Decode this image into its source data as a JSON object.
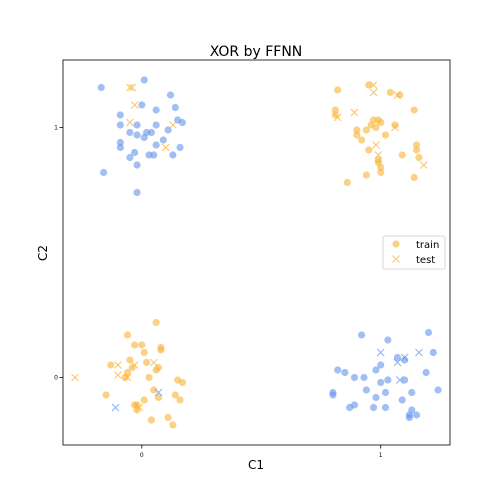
{
  "chart_data": {
    "type": "scatter",
    "title": "XOR by FFNN",
    "xlabel": "C1",
    "ylabel": "C2",
    "xlim": [
      -0.33,
      1.29
    ],
    "ylim": [
      -0.27,
      1.27
    ],
    "xticks": [
      0,
      1
    ],
    "yticks": [
      0,
      1
    ],
    "grid": false,
    "legend_position": "center-right",
    "legend": [
      {
        "label": "train",
        "marker": "circle"
      },
      {
        "label": "test",
        "marker": "x"
      }
    ],
    "class_colors": {
      "class_1": "#f9b233",
      "class_0": "#6495ed"
    },
    "train": [
      {
        "cluster": "top-left",
        "class": "class_0",
        "points": [
          [
            -0.17,
            1.16
          ],
          [
            0.01,
            1.19
          ],
          [
            -0.09,
            1.05
          ],
          [
            -0.09,
            1.01
          ],
          [
            -0.02,
            1.01
          ],
          [
            0.0,
            1.09
          ],
          [
            0.06,
            1.07
          ],
          [
            0.06,
            1.01
          ],
          [
            0.12,
            1.13
          ],
          [
            0.14,
            1.08
          ],
          [
            0.17,
            1.02
          ],
          [
            0.15,
            1.03
          ],
          [
            0.11,
            0.99
          ],
          [
            0.04,
            0.98
          ],
          [
            0.02,
            0.98
          ],
          [
            -0.05,
            0.98
          ],
          [
            0.01,
            0.96
          ],
          [
            0.09,
            0.95
          ],
          [
            0.06,
            0.93
          ],
          [
            -0.09,
            0.94
          ],
          [
            -0.03,
            0.9
          ],
          [
            0.03,
            0.89
          ],
          [
            -0.05,
            0.88
          ],
          [
            0.13,
            0.89
          ],
          [
            0.05,
            0.89
          ],
          [
            -0.02,
            0.85
          ],
          [
            -0.16,
            0.82
          ],
          [
            -0.02,
            0.74
          ],
          [
            -0.09,
            0.92
          ],
          [
            0.16,
            0.92
          ],
          [
            -0.02,
            0.97
          ]
        ]
      },
      {
        "cluster": "top-right",
        "class": "class_1",
        "points": [
          [
            0.82,
            1.15
          ],
          [
            0.95,
            1.17
          ],
          [
            1.04,
            1.14
          ],
          [
            1.08,
            1.13
          ],
          [
            1.14,
            1.07
          ],
          [
            0.81,
            1.07
          ],
          [
            0.81,
            1.05
          ],
          [
            0.97,
            1.03
          ],
          [
            0.99,
            1.03
          ],
          [
            1.0,
            1.02
          ],
          [
            0.96,
            1.01
          ],
          [
            0.94,
            0.99
          ],
          [
            0.9,
            0.99
          ],
          [
            0.9,
            0.97
          ],
          [
            1.02,
            0.97
          ],
          [
            0.92,
            0.95
          ],
          [
            1.15,
            0.93
          ],
          [
            1.15,
            0.91
          ],
          [
            0.95,
            0.91
          ],
          [
            0.99,
            0.87
          ],
          [
            1.09,
            0.89
          ],
          [
            1.16,
            0.88
          ],
          [
            0.99,
            0.86
          ],
          [
            1.0,
            0.84
          ],
          [
            1.0,
            0.82
          ],
          [
            0.94,
            0.81
          ],
          [
            1.14,
            0.8
          ],
          [
            0.86,
            0.78
          ],
          [
            0.98,
            1.0
          ],
          [
            1.06,
            1.01
          ]
        ]
      },
      {
        "cluster": "bottom-left",
        "class": "class_1",
        "points": [
          [
            0.06,
            0.22
          ],
          [
            -0.06,
            0.17
          ],
          [
            -0.03,
            0.13
          ],
          [
            0.0,
            0.13
          ],
          [
            0.08,
            0.12
          ],
          [
            0.01,
            0.1
          ],
          [
            0.08,
            0.11
          ],
          [
            -0.13,
            0.05
          ],
          [
            -0.05,
            0.07
          ],
          [
            0.02,
            0.06
          ],
          [
            -0.04,
            0.04
          ],
          [
            -0.06,
            0.02
          ],
          [
            0.06,
            0.03
          ],
          [
            0.03,
            0.0
          ],
          [
            -0.07,
            0.0
          ],
          [
            0.15,
            -0.01
          ],
          [
            0.17,
            -0.02
          ],
          [
            -0.15,
            -0.07
          ],
          [
            0.14,
            -0.07
          ],
          [
            0.01,
            -0.09
          ],
          [
            0.07,
            -0.08
          ],
          [
            0.16,
            -0.09
          ],
          [
            -0.03,
            -0.11
          ],
          [
            -0.02,
            -0.13
          ],
          [
            0.11,
            -0.16
          ],
          [
            0.04,
            -0.17
          ],
          [
            0.13,
            -0.19
          ],
          [
            -0.02,
            -0.11
          ],
          [
            0.07,
            0.04
          ],
          [
            0.05,
            -0.05
          ]
        ]
      },
      {
        "cluster": "bottom-right",
        "class": "class_0",
        "points": [
          [
            0.92,
            0.17
          ],
          [
            1.2,
            0.18
          ],
          [
            1.03,
            0.15
          ],
          [
            1.22,
            0.1
          ],
          [
            1.07,
            0.08
          ],
          [
            1.1,
            0.07
          ],
          [
            1.0,
            0.05
          ],
          [
            0.98,
            0.03
          ],
          [
            0.85,
            0.02
          ],
          [
            0.82,
            0.03
          ],
          [
            0.93,
            0.0
          ],
          [
            0.89,
            0.0
          ],
          [
            1.19,
            0.02
          ],
          [
            1.0,
            -0.02
          ],
          [
            1.03,
            -0.01
          ],
          [
            1.1,
            -0.01
          ],
          [
            0.94,
            -0.05
          ],
          [
            1.13,
            -0.06
          ],
          [
            1.02,
            -0.06
          ],
          [
            1.24,
            -0.05
          ],
          [
            0.8,
            -0.06
          ],
          [
            0.8,
            -0.07
          ],
          [
            0.98,
            -0.08
          ],
          [
            1.09,
            -0.09
          ],
          [
            0.89,
            -0.11
          ],
          [
            0.87,
            -0.12
          ],
          [
            1.02,
            -0.12
          ],
          [
            0.97,
            -0.12
          ],
          [
            1.13,
            -0.13
          ],
          [
            1.12,
            -0.15
          ],
          [
            1.15,
            -0.15
          ],
          [
            1.12,
            -0.16
          ]
        ]
      }
    ],
    "test": [
      {
        "cluster": "top-left",
        "class": "class_1",
        "points": [
          [
            -0.05,
            1.16
          ],
          [
            -0.04,
            1.16
          ],
          [
            -0.05,
            1.02
          ],
          [
            0.13,
            1.01
          ],
          [
            -0.03,
            1.09
          ],
          [
            0.1,
            0.92
          ]
        ]
      },
      {
        "cluster": "top-right",
        "class": "class_1",
        "points": [
          [
            0.97,
            1.14
          ],
          [
            0.97,
            1.17
          ],
          [
            0.89,
            1.06
          ],
          [
            1.07,
            1.13
          ],
          [
            1.06,
            1.0
          ],
          [
            0.82,
            1.04
          ],
          [
            0.99,
            0.89
          ],
          [
            0.98,
            0.93
          ],
          [
            1.18,
            0.85
          ]
        ]
      },
      {
        "cluster": "bottom-left",
        "class": "class_1",
        "points": [
          [
            -0.28,
            0.0
          ],
          [
            -0.1,
            0.05
          ],
          [
            -0.1,
            0.01
          ],
          [
            -0.03,
            0.05
          ],
          [
            0.05,
            0.06
          ],
          [
            -0.06,
            0.0
          ],
          [
            -0.01,
            -0.12
          ]
        ]
      },
      {
        "cluster": "bottom-left",
        "class": "class_0",
        "points": [
          [
            -0.11,
            -0.12
          ],
          [
            0.07,
            -0.06
          ]
        ]
      },
      {
        "cluster": "bottom-right",
        "class": "class_0",
        "points": [
          [
            1.0,
            0.1
          ],
          [
            1.1,
            0.08
          ],
          [
            1.07,
            0.06
          ],
          [
            1.08,
            -0.01
          ],
          [
            1.16,
            0.1
          ]
        ]
      }
    ]
  }
}
